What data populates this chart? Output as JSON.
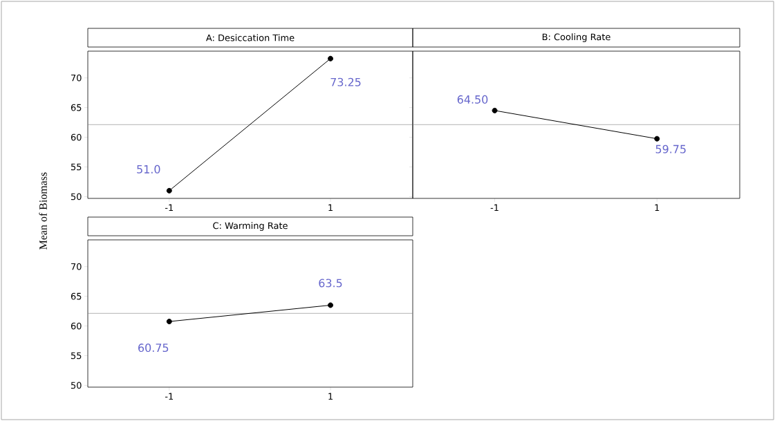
{
  "chart_data": [
    {
      "type": "line",
      "title": "A: Desiccation Time",
      "ylabel": "Mean of Biomass",
      "categories": [
        "-1",
        "1"
      ],
      "ylim": [
        49.7,
        74.5
      ],
      "yticks": [
        50,
        55,
        60,
        65,
        70
      ],
      "marker": "circle",
      "series": [
        {
          "color": "#000000",
          "values": [
            51.0,
            73.25
          ],
          "value_labels": [
            "51.0",
            "73.25"
          ]
        }
      ],
      "ref_lines": [
        {
          "axis": "y",
          "value": 62.125,
          "color": "#808080"
        }
      ]
    },
    {
      "type": "line",
      "title": "B: Cooling Rate",
      "categories": [
        "-1",
        "1"
      ],
      "ylim": [
        49.7,
        74.5
      ],
      "yticks": [
        50,
        55,
        60,
        65,
        70
      ],
      "marker": "circle",
      "tick_labels": "x",
      "series": [
        {
          "color": "#000000",
          "values": [
            64.5,
            59.75
          ],
          "value_labels": [
            "64.50",
            "59.75"
          ]
        }
      ],
      "ref_lines": [
        {
          "axis": "y",
          "value": 62.125,
          "color": "#808080"
        }
      ]
    },
    {
      "type": "line",
      "title": "C: Warming Rate",
      "categories": [
        "-1",
        "1"
      ],
      "ylim": [
        49.7,
        74.5
      ],
      "yticks": [
        50,
        55,
        60,
        65,
        70
      ],
      "marker": "circle",
      "series": [
        {
          "color": "#000000",
          "values": [
            60.75,
            63.5
          ],
          "value_labels": [
            "60.75",
            "63.5"
          ]
        }
      ],
      "ref_lines": [
        {
          "axis": "y",
          "value": 62.125,
          "color": "#808080"
        }
      ]
    }
  ]
}
